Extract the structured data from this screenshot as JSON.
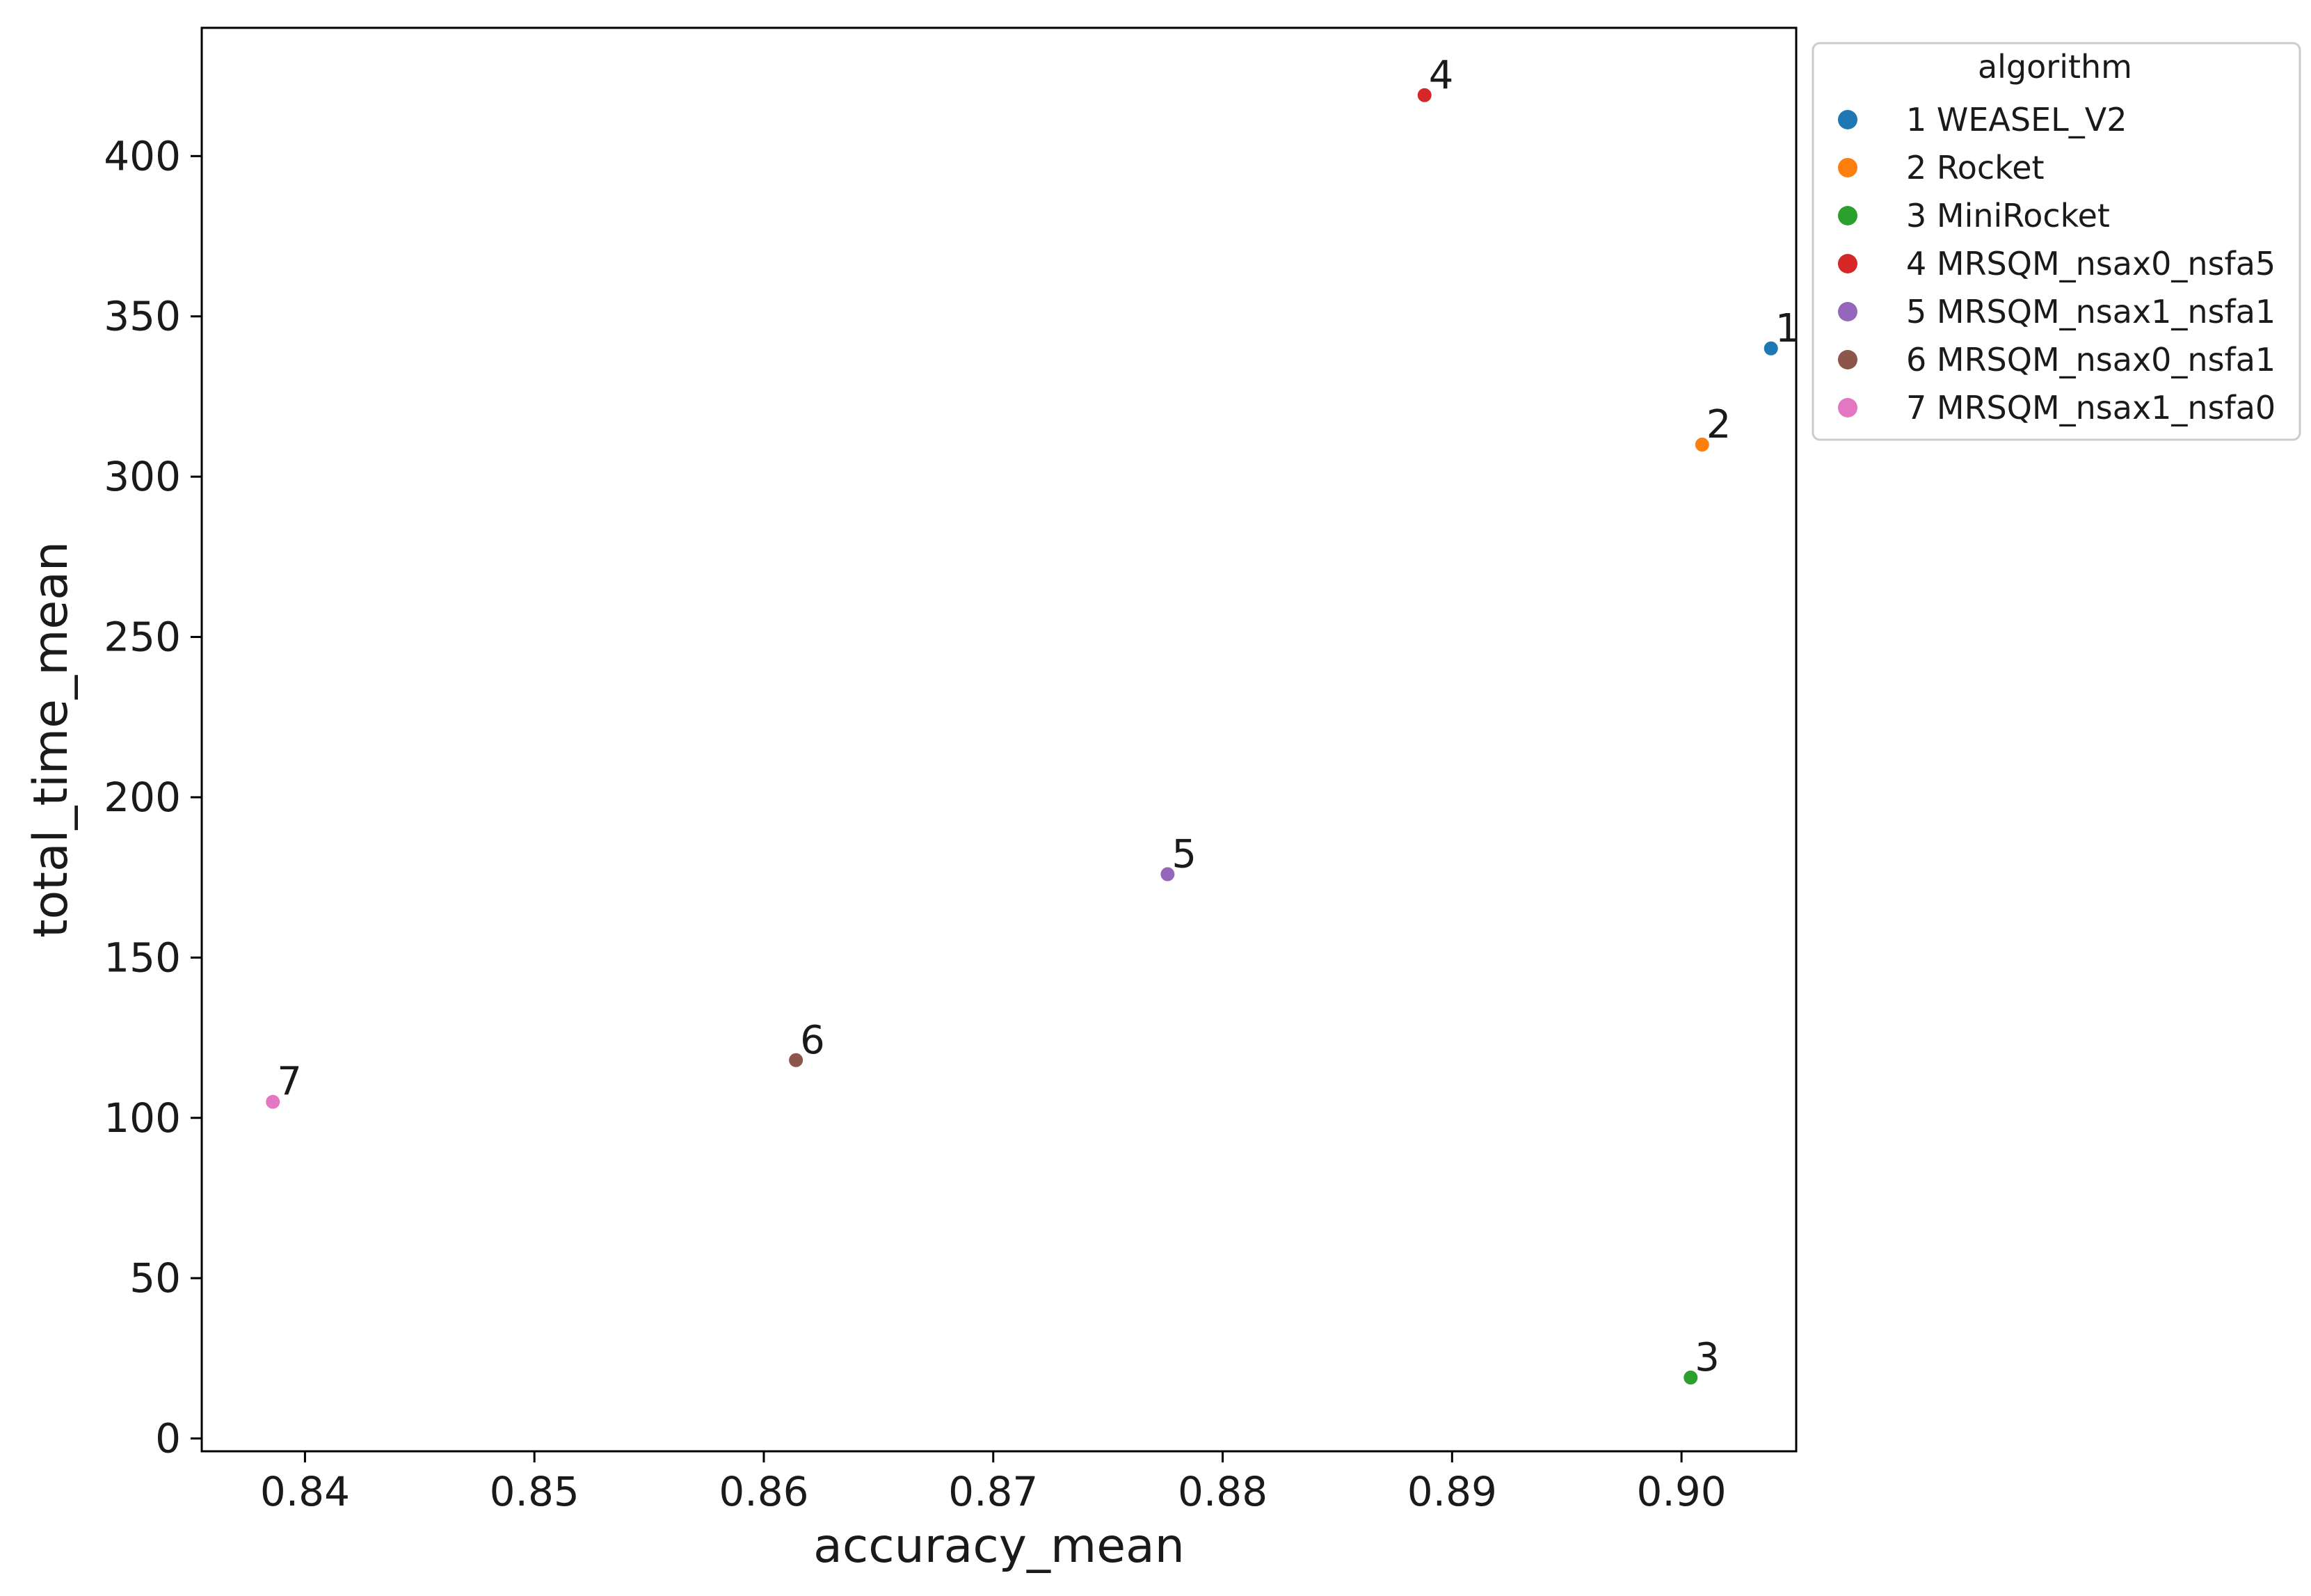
{
  "chart_data": {
    "type": "scatter",
    "title": "",
    "xlabel": "accuracy_mean",
    "ylabel": "total_time_mean",
    "xlim": [
      0.8355,
      0.905
    ],
    "ylim": [
      -4,
      440
    ],
    "xticks": [
      0.84,
      0.85,
      0.86,
      0.87,
      0.88,
      0.89,
      0.9
    ],
    "xtick_labels": [
      "0.84",
      "0.85",
      "0.86",
      "0.87",
      "0.88",
      "0.89",
      "0.90"
    ],
    "yticks": [
      0,
      50,
      100,
      150,
      200,
      250,
      300,
      350,
      400
    ],
    "ytick_labels": [
      "0",
      "50",
      "100",
      "150",
      "200",
      "250",
      "300",
      "350",
      "400"
    ],
    "grid": false,
    "legend": {
      "title": "algorithm",
      "placement": "outside-top-right"
    },
    "series": [
      {
        "name": "1 WEASEL_V2",
        "label": "1",
        "color": "#1f77b4",
        "x": 0.9039,
        "y": 340
      },
      {
        "name": "2 Rocket",
        "label": "2",
        "color": "#ff7f0e",
        "x": 0.9009,
        "y": 310
      },
      {
        "name": "3 MiniRocket",
        "label": "3",
        "color": "#2ca02c",
        "x": 0.9004,
        "y": 19
      },
      {
        "name": "4 MRSQM_nsax0_nsfa5",
        "label": "4",
        "color": "#d62728",
        "x": 0.8888,
        "y": 419
      },
      {
        "name": "5 MRSQM_nsax1_nsfa1",
        "label": "5",
        "color": "#9467bd",
        "x": 0.8776,
        "y": 176
      },
      {
        "name": "6 MRSQM_nsax0_nsfa1",
        "label": "6",
        "color": "#8c564b",
        "x": 0.8614,
        "y": 118
      },
      {
        "name": "7 MRSQM_nsax1_nsfa0",
        "label": "7",
        "color": "#e377c2",
        "x": 0.8386,
        "y": 105
      }
    ]
  }
}
